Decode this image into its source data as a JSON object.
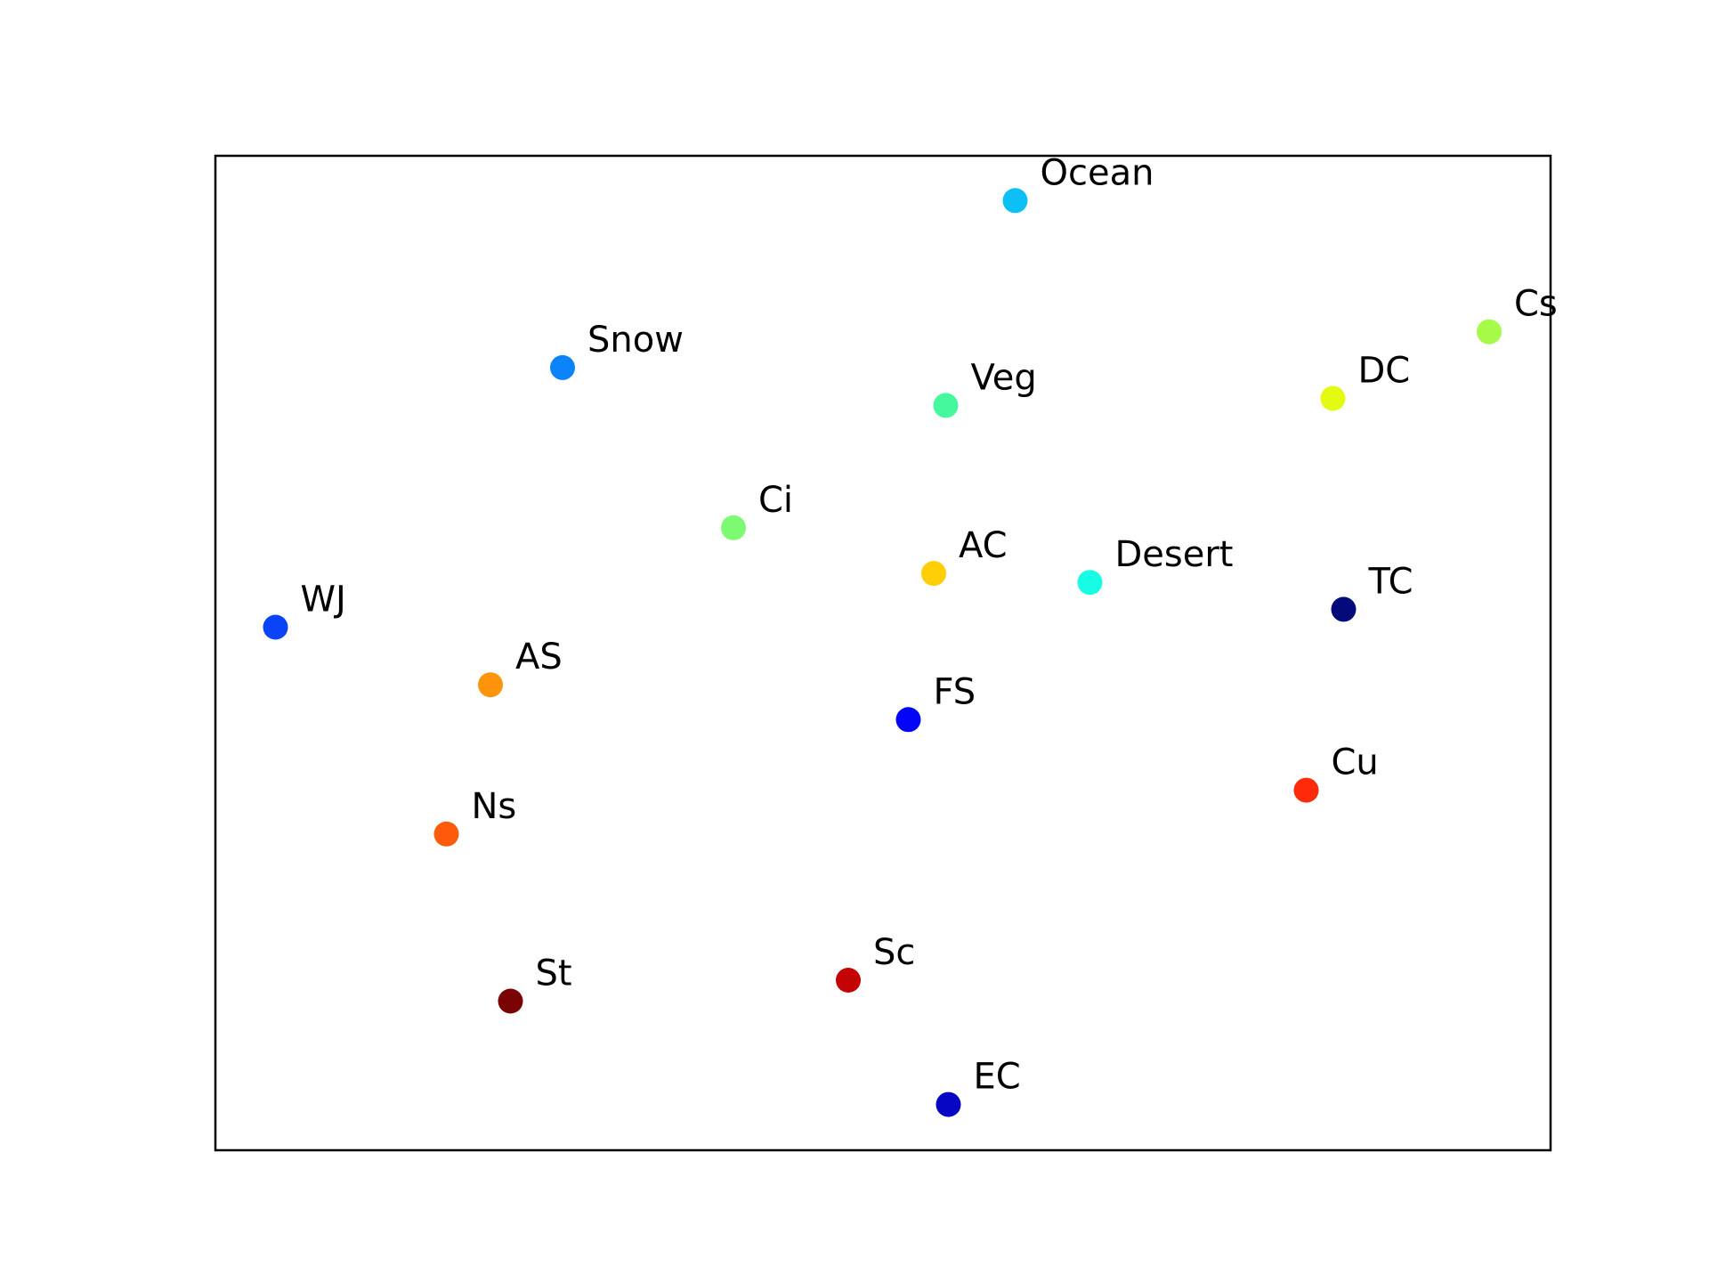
{
  "chart_data": {
    "type": "scatter",
    "title": "",
    "xlabel": "",
    "ylabel": "",
    "xlim": [
      0,
      100
    ],
    "ylim": [
      0,
      100
    ],
    "axes_ticks": false,
    "grid": false,
    "legend": "none",
    "points": [
      {
        "label": "Ocean",
        "x": 59.9,
        "y": 95.5,
        "color": "#0cc0f6"
      },
      {
        "label": "Cs",
        "x": 95.4,
        "y": 82.3,
        "color": "#a6fb48"
      },
      {
        "label": "Snow",
        "x": 26.0,
        "y": 78.7,
        "color": "#0a84f8"
      },
      {
        "label": "Veg",
        "x": 54.7,
        "y": 74.9,
        "color": "#44f89d"
      },
      {
        "label": "DC",
        "x": 83.7,
        "y": 75.6,
        "color": "#e3fb12"
      },
      {
        "label": "Ci",
        "x": 38.8,
        "y": 62.6,
        "color": "#7cfa72"
      },
      {
        "label": "AC",
        "x": 53.8,
        "y": 58.0,
        "color": "#fece06"
      },
      {
        "label": "Desert",
        "x": 65.5,
        "y": 57.1,
        "color": "#18fbe4"
      },
      {
        "label": "TC",
        "x": 84.5,
        "y": 54.4,
        "color": "#030a7a"
      },
      {
        "label": "WJ",
        "x": 4.5,
        "y": 52.6,
        "color": "#0a44f6"
      },
      {
        "label": "AS",
        "x": 20.6,
        "y": 46.8,
        "color": "#fe940c"
      },
      {
        "label": "FS",
        "x": 51.9,
        "y": 43.3,
        "color": "#0404f6"
      },
      {
        "label": "Cu",
        "x": 81.7,
        "y": 36.2,
        "color": "#fe2a0a"
      },
      {
        "label": "Ns",
        "x": 17.3,
        "y": 31.8,
        "color": "#fe5a0c"
      },
      {
        "label": "St",
        "x": 22.1,
        "y": 15.0,
        "color": "#7a0404"
      },
      {
        "label": "Sc",
        "x": 47.4,
        "y": 17.1,
        "color": "#c40404"
      },
      {
        "label": "EC",
        "x": 54.9,
        "y": 4.6,
        "color": "#0606c4"
      }
    ]
  }
}
